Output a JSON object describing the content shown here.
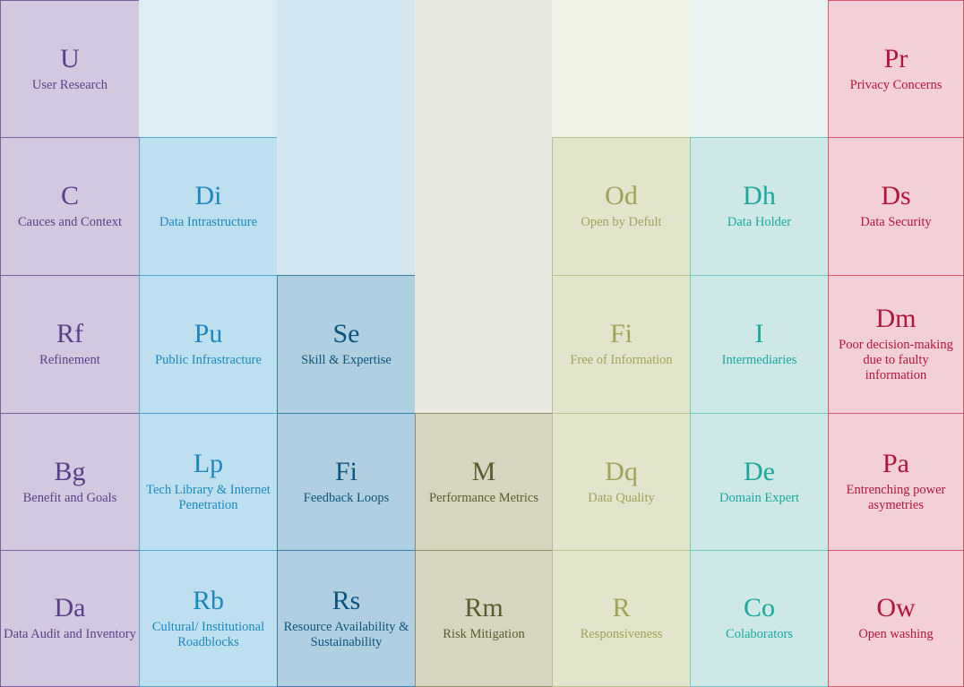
{
  "colors": {
    "columns": [
      {
        "bg": "#d2c8e0",
        "border": "#7a5e9f",
        "text": "#5a3f88"
      },
      {
        "bg": "#bddfef",
        "border": "#55a8d2",
        "text": "#1b87bf"
      },
      {
        "bg": "#b0d0e1",
        "border": "#3a7da6",
        "text": "#0e5379"
      },
      {
        "bg": "#d6d6c0",
        "border": "#8c8c67",
        "text": "#5c5c2c"
      },
      {
        "bg": "#e2e4cc",
        "border": "#b9c089",
        "text": "#9ea457"
      },
      {
        "bg": "#cde8e6",
        "border": "#6ec8c0",
        "text": "#1aa89c"
      },
      {
        "bg": "#f3d0d7",
        "border": "#d8566f",
        "text": "#b3143b"
      }
    ],
    "empty_backgrounds": [
      "#ffffff",
      "#ddedf5",
      "#d4e6ef",
      "#e9e9e2",
      "#f1f2e5",
      "#e8f2f1",
      "#ffffff"
    ]
  },
  "columns": [
    {
      "cells": [
        {
          "symbol": "U",
          "name": "User Research"
        },
        {
          "symbol": "C",
          "name": "Cauces and Context"
        },
        {
          "symbol": "Rf",
          "name": "Refinement"
        },
        {
          "symbol": "Bg",
          "name": "Benefit and Goals"
        },
        {
          "symbol": "Da",
          "name": "Data Audit and Inventory"
        }
      ]
    },
    {
      "cells": [
        {
          "symbol": "Di",
          "name": "Data Intrastructure"
        },
        {
          "symbol": "Pu",
          "name": "Public Infrastracture"
        },
        {
          "symbol": "Lp",
          "name": "Tech Library & Internet Penetration"
        },
        {
          "symbol": "Rb",
          "name": "Cultural/ Institutional Roadblocks"
        }
      ]
    },
    {
      "cells": [
        {
          "symbol": "Se",
          "name": "Skill & Expertise"
        },
        {
          "symbol": "Fi",
          "name": "Feedback Loops"
        },
        {
          "symbol": "Rs",
          "name": "Resource Availability & Sustainability"
        }
      ]
    },
    {
      "cells": [
        {
          "symbol": "M",
          "name": "Performance Metrics"
        },
        {
          "symbol": "Rm",
          "name": "Risk Mitigation"
        }
      ]
    },
    {
      "cells": [
        {
          "symbol": "Od",
          "name": "Open by Defult"
        },
        {
          "symbol": "Fi",
          "name": "Free of Information"
        },
        {
          "symbol": "Dq",
          "name": "Data Quality"
        },
        {
          "symbol": "R",
          "name": "Responsiveness"
        }
      ]
    },
    {
      "cells": [
        {
          "symbol": "Dh",
          "name": "Data Holder"
        },
        {
          "symbol": "I",
          "name": "Intermediaries"
        },
        {
          "symbol": "De",
          "name": "Domain Expert"
        },
        {
          "symbol": "Co",
          "name": "Colaborators"
        }
      ]
    },
    {
      "cells": [
        {
          "symbol": "Pr",
          "name": "Privacy Concerns"
        },
        {
          "symbol": "Ds",
          "name": "Data Security"
        },
        {
          "symbol": "Dm",
          "name": "Poor decision-making due to faulty information"
        },
        {
          "symbol": "Pa",
          "name": "Entrenching power asymetries"
        },
        {
          "symbol": "Ow",
          "name": "Open washing"
        }
      ]
    }
  ]
}
